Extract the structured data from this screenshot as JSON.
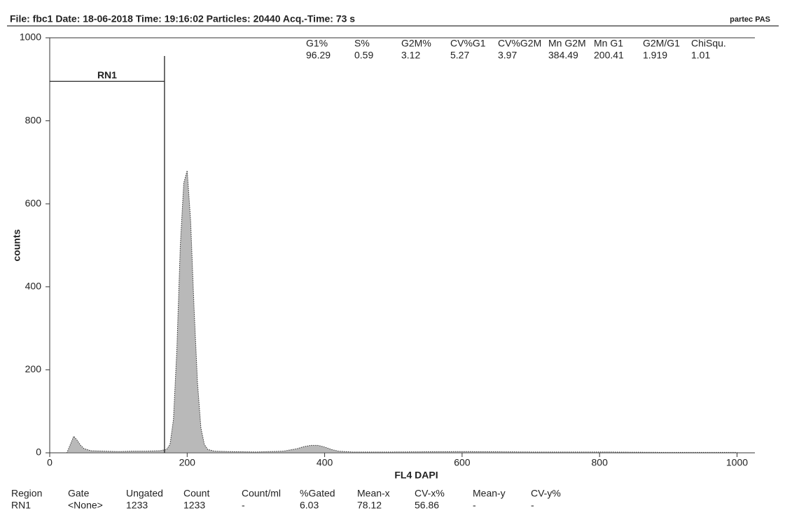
{
  "header": {
    "info": "File: fbc1   Date: 18-06-2018   Time: 19:16:02   Particles: 20440   Acq.-Time: 73 s",
    "brand": "partec PAS"
  },
  "stats": {
    "headers": [
      "G1%",
      "S%",
      "G2M%",
      "CV%G1",
      "CV%G2M",
      "Mn G2M",
      "Mn G1",
      "G2M/G1",
      "ChiSqu."
    ],
    "values": [
      96.29,
      0.59,
      3.12,
      5.27,
      3.97,
      384.49,
      200.41,
      1.919,
      1.01
    ]
  },
  "chart_data": {
    "type": "area",
    "x_label": "FL4  DAPI",
    "y_label": "counts",
    "color": "#8a8a8a",
    "x": [
      0,
      25,
      30,
      35,
      40,
      45,
      50,
      60,
      80,
      100,
      120,
      140,
      160,
      170,
      175,
      180,
      185,
      190,
      195,
      200,
      205,
      210,
      215,
      220,
      225,
      230,
      240,
      260,
      300,
      340,
      360,
      370,
      380,
      390,
      400,
      410,
      420,
      440,
      500,
      600,
      700,
      800,
      900,
      1000
    ],
    "values": [
      0,
      0,
      20,
      40,
      30,
      18,
      10,
      5,
      4,
      3,
      4,
      4,
      5,
      8,
      20,
      80,
      250,
      500,
      650,
      680,
      560,
      350,
      170,
      60,
      20,
      8,
      4,
      3,
      2,
      4,
      10,
      15,
      18,
      18,
      14,
      8,
      4,
      2,
      2,
      3,
      2,
      2,
      1,
      1
    ],
    "xlim": [
      0,
      1026
    ],
    "ylim": [
      0,
      1000
    ],
    "xticks": [
      0,
      200,
      400,
      600,
      800,
      1000
    ],
    "yticks": [
      0,
      200,
      400,
      600,
      800,
      1000
    ],
    "region": {
      "label": "RN1",
      "range": [
        0,
        167
      ],
      "level": 895
    }
  },
  "region_table": {
    "headers": [
      "Region",
      "Gate",
      "Ungated",
      "Count",
      "Count/ml",
      "%Gated",
      "Mean-x",
      "CV-x%",
      "Mean-y",
      "CV-y%"
    ],
    "row": [
      "RN1",
      "<None>",
      1233,
      1233,
      "-",
      6.03,
      78.12,
      56.86,
      "-",
      "-"
    ]
  }
}
